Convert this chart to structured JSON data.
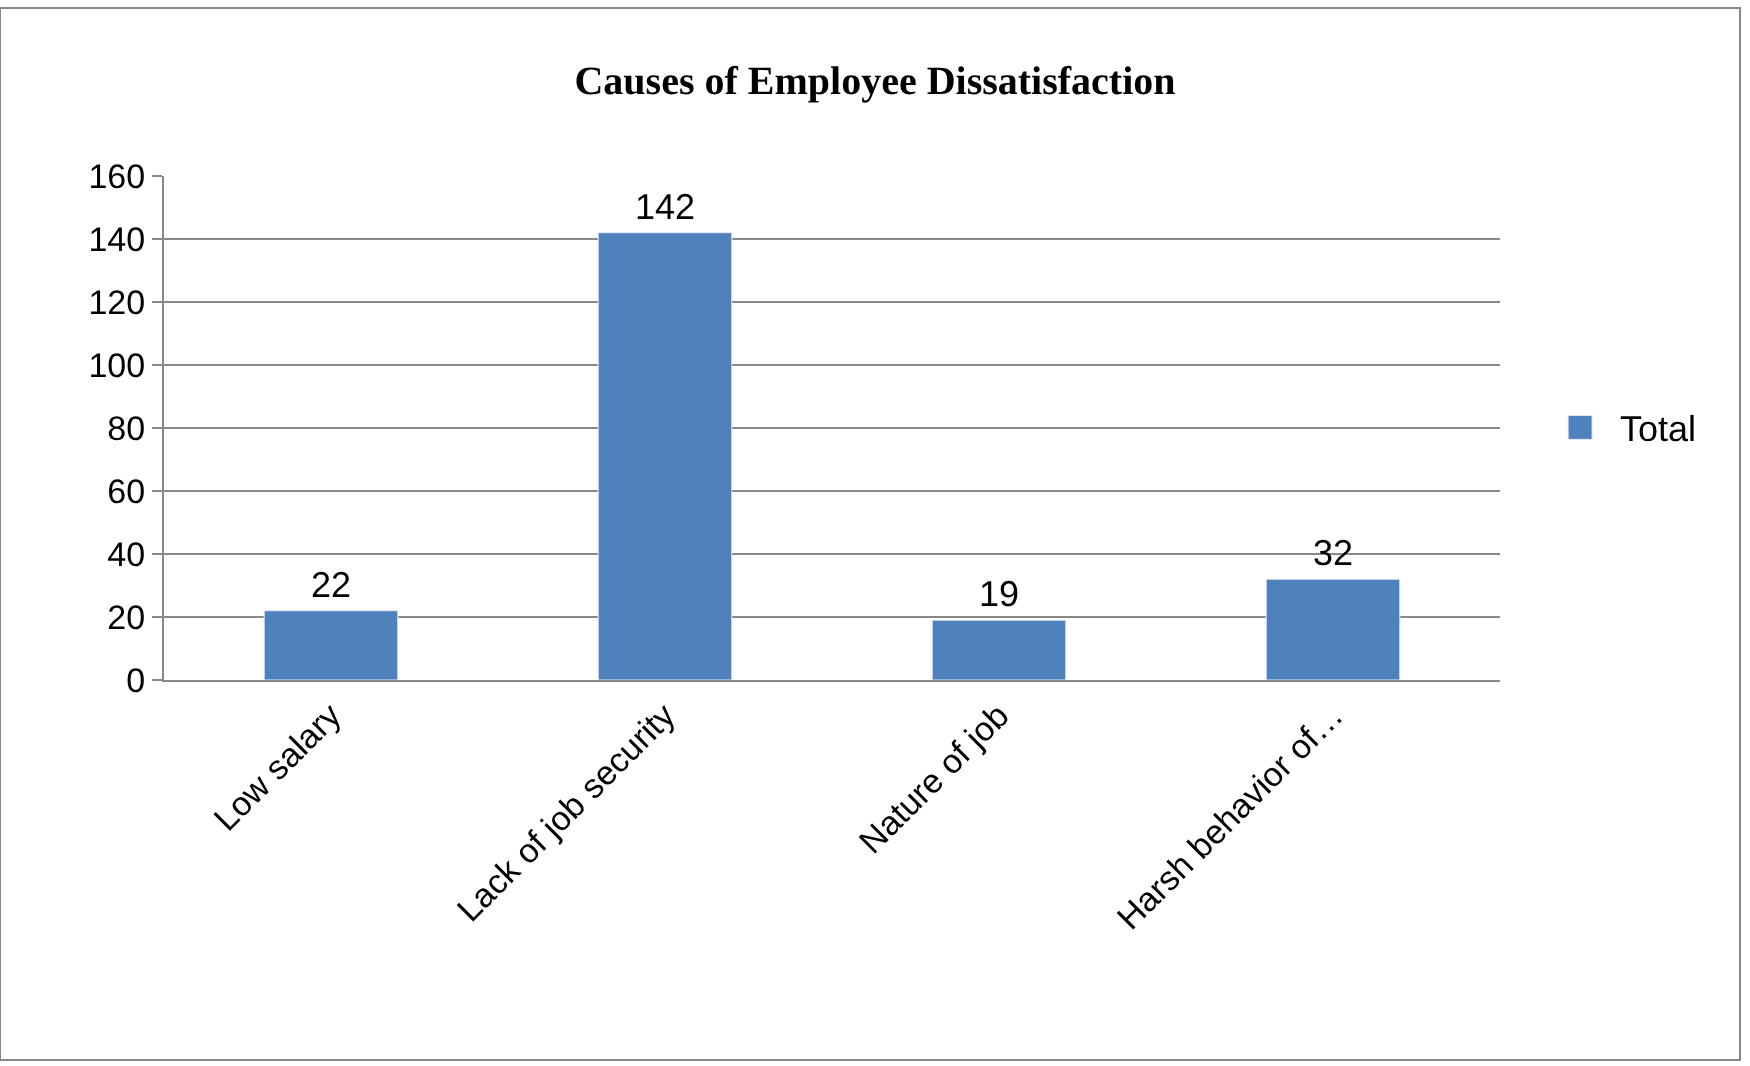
{
  "chart_data": {
    "type": "bar",
    "title": "Causes of Employee Dissatisfaction",
    "categories": [
      "Low salary",
      "Lack of job security",
      "Nature of job",
      "Harsh behavior of…"
    ],
    "series": [
      {
        "name": "Total",
        "color": "#4f81bd",
        "values": [
          22,
          142,
          19,
          32
        ]
      }
    ],
    "ylim": [
      0,
      160
    ],
    "yticks": [
      0,
      20,
      40,
      60,
      80,
      100,
      120,
      140,
      160
    ],
    "grid": "y",
    "legend": "right",
    "data_labels": true
  }
}
